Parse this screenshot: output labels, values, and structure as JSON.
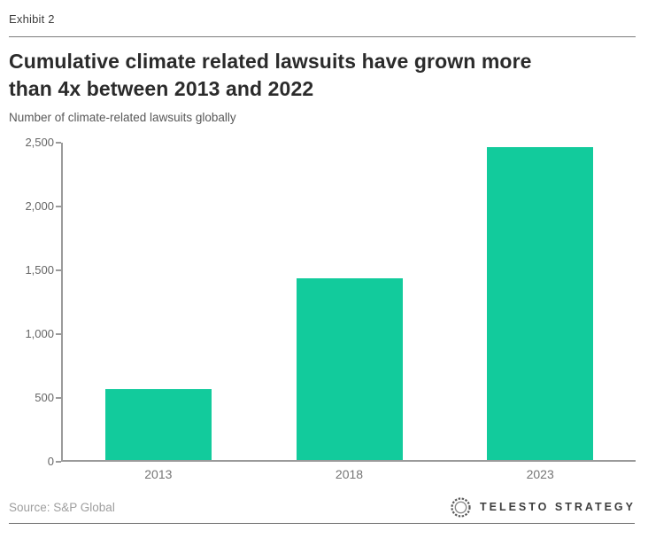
{
  "exhibit_label": "Exhibit 2",
  "title_lines": [
    "Cumulative climate related lawsuits have grown more",
    "than 4x between 2013 and 2022"
  ],
  "subtitle": "Number of climate-related lawsuits globally",
  "footer": {
    "source": "Source: S&P Global",
    "brand": "TELESTO STRATEGY"
  },
  "colors": {
    "bar": "#12cb9c",
    "axis": "#9a9a9a"
  },
  "chart_data": {
    "type": "bar",
    "title": "Cumulative climate related lawsuits have grown more than 4x between 2013 and 2022",
    "subtitle": "Number of climate-related lawsuits globally",
    "categories": [
      "2013",
      "2018",
      "2023"
    ],
    "values": [
      550,
      1420,
      2450
    ],
    "xlabel": "",
    "ylabel": "Number of climate-related lawsuits globally",
    "ylim": [
      0,
      2500
    ],
    "yticks": [
      0,
      500,
      1000,
      1500,
      2000,
      2500
    ],
    "grid": false,
    "legend": false,
    "bar_color": "#12cb9c"
  }
}
